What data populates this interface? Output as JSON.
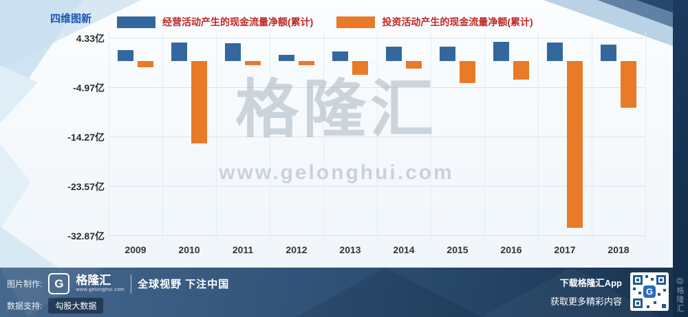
{
  "title": "四维图新",
  "legend": [
    {
      "label": "经营活动产生的现金流量净额(累计)",
      "color": "#33689E"
    },
    {
      "label": "投资活动产生的现金流量净额(累计)",
      "color": "#E87A28"
    }
  ],
  "chart_data": {
    "type": "bar",
    "title": "四维图新 现金流量净额(累计)",
    "categories": [
      "2009",
      "2010",
      "2011",
      "2012",
      "2013",
      "2014",
      "2015",
      "2016",
      "2017",
      "2018"
    ],
    "series": [
      {
        "name": "经营活动产生的现金流量净额(累计)",
        "color": "#33689E",
        "values": [
          2.0,
          3.4,
          3.3,
          1.1,
          1.8,
          2.6,
          2.7,
          3.5,
          3.4,
          3.1
        ]
      },
      {
        "name": "投资活动产生的现金流量净额(累计)",
        "color": "#E87A28",
        "values": [
          -1.2,
          -15.5,
          -0.9,
          -0.8,
          -2.6,
          -1.5,
          -4.2,
          -3.5,
          -31.5,
          -8.8
        ]
      }
    ],
    "unit": "亿",
    "yticks": [
      4.33,
      -4.97,
      -14.27,
      -23.57,
      -32.87
    ],
    "ytick_labels": [
      "4.33亿",
      "-4.97亿",
      "-14.27亿",
      "-23.57亿",
      "-32.87亿"
    ],
    "ylim": [
      -35,
      5
    ],
    "grid": true,
    "legend_position": "top"
  },
  "watermark": {
    "brand": "格隆汇",
    "url": "www.gelonghui.com"
  },
  "footer": {
    "made_by_label": "图片制作:",
    "logo_letter": "G",
    "logo_text": "格隆汇",
    "logo_url": "www.gelonghui.com",
    "slogan": "全球视野 下注中国",
    "data_support_label": "数据支持:",
    "data_support_value": "勾股大数据",
    "download_line1": "下载格隆汇App",
    "download_line2": "获取更多精彩内容"
  },
  "side_badge": "@格隆汇"
}
